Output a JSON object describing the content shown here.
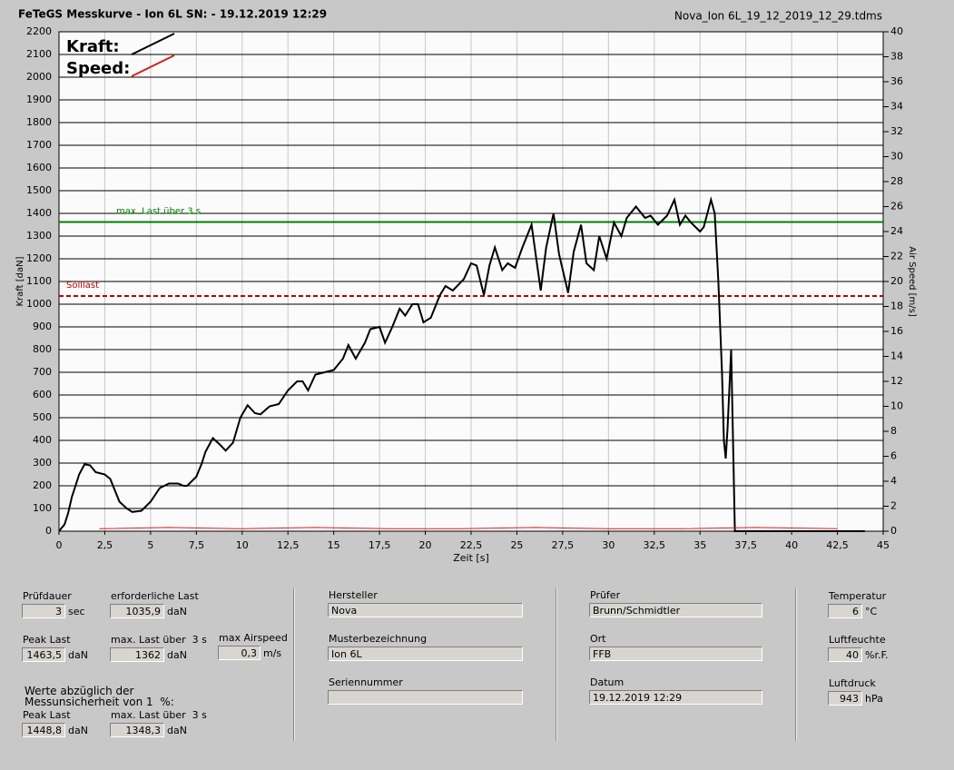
{
  "header": {
    "title": "FeTeGS Messkurve - Ion 6L  SN:  - 19.12.2019 12:29",
    "file": "Nova_Ion 6L_19_12_2019_12_29.tdms"
  },
  "chart_data": {
    "type": "line",
    "x_label": "Zeit [s]",
    "y_label": "Kraft [daN]",
    "y2_label": "Air Speed [m/s]",
    "xlim": [
      0,
      45
    ],
    "xticks": [
      0,
      {
        "value": 2.5,
        "label": "2,5"
      },
      5,
      {
        "value": 7.5,
        "label": "7,5"
      },
      10,
      {
        "value": 12.5,
        "label": "12,5"
      },
      15,
      {
        "value": 17.5,
        "label": "17,5"
      },
      20,
      {
        "value": 22.5,
        "label": "22,5"
      },
      25,
      {
        "value": 27.5,
        "label": "27,5"
      },
      30,
      {
        "value": 32.5,
        "label": "32,5"
      },
      35,
      {
        "value": 37.5,
        "label": "37,5"
      },
      40,
      {
        "value": 42.5,
        "label": "42,5"
      },
      45
    ],
    "ylim": [
      0,
      2200
    ],
    "yticks": [
      0,
      100,
      200,
      300,
      400,
      500,
      600,
      700,
      800,
      900,
      1000,
      1100,
      1200,
      1300,
      1400,
      1500,
      1600,
      1700,
      1800,
      1900,
      2000,
      2100,
      2200
    ],
    "y2lim": [
      0,
      40
    ],
    "y2ticks": [
      0,
      2,
      4,
      6,
      8,
      10,
      12,
      14,
      16,
      18,
      20,
      22,
      24,
      26,
      28,
      30,
      32,
      34,
      36,
      38,
      40
    ],
    "grid": true,
    "series": [
      {
        "name": "Kraft:",
        "color": "#000000",
        "x": [
          0,
          0.3,
          0.5,
          0.7,
          0.9,
          1.1,
          1.4,
          1.7,
          2,
          2.5,
          2.8,
          3,
          3.3,
          3.7,
          4,
          4.5,
          5,
          5.5,
          6,
          6.5,
          6.8,
          7,
          7.5,
          7.8,
          8,
          8.4,
          8.8,
          9.1,
          9.5,
          9.9,
          10.3,
          10.7,
          11,
          11.5,
          12,
          12.5,
          13,
          13.3,
          13.6,
          14,
          14.5,
          15,
          15.5,
          15.8,
          16.2,
          16.7,
          17,
          17.5,
          17.8,
          18.2,
          18.6,
          18.9,
          19.3,
          19.6,
          19.9,
          20.3,
          20.8,
          21.1,
          21.5,
          22.1,
          22.5,
          22.8,
          23.2,
          23.5,
          23.8,
          24.2,
          24.5,
          24.9,
          25.3,
          25.8,
          26.3,
          26.6,
          27,
          27.3,
          27.8,
          28.1,
          28.5,
          28.8,
          29.2,
          29.5,
          29.9,
          30.3,
          30.7,
          31,
          31.5,
          32,
          32.3,
          32.7,
          33.2,
          33.6,
          33.9,
          34.2,
          34.5,
          35,
          35.2,
          35.6,
          35.8,
          36,
          36.2,
          36.3,
          36.4,
          36.5,
          36.7,
          36.9,
          40,
          44
        ],
        "values": [
          0,
          30,
          80,
          150,
          200,
          250,
          295,
          290,
          260,
          250,
          230,
          190,
          130,
          100,
          85,
          90,
          130,
          190,
          210,
          210,
          200,
          200,
          240,
          300,
          350,
          410,
          380,
          355,
          390,
          500,
          555,
          520,
          515,
          550,
          560,
          620,
          660,
          660,
          620,
          690,
          700,
          710,
          760,
          820,
          760,
          830,
          890,
          900,
          830,
          900,
          980,
          950,
          1000,
          1000,
          920,
          940,
          1040,
          1080,
          1060,
          1110,
          1180,
          1170,
          1040,
          1170,
          1250,
          1150,
          1180,
          1160,
          1250,
          1350,
          1060,
          1250,
          1400,
          1220,
          1050,
          1230,
          1350,
          1180,
          1150,
          1300,
          1200,
          1360,
          1300,
          1380,
          1430,
          1380,
          1390,
          1350,
          1390,
          1460,
          1350,
          1390,
          1360,
          1320,
          1340,
          1460,
          1400,
          1100,
          700,
          400,
          320,
          450,
          800,
          0,
          0,
          0
        ]
      },
      {
        "name": "Speed:",
        "color": "#d02020",
        "axis": "y2",
        "x": [
          2.2,
          6,
          10,
          14,
          18,
          22,
          26,
          30,
          34,
          38,
          42.5
        ],
        "values": [
          0.2,
          0.3,
          0.2,
          0.3,
          0.2,
          0.2,
          0.3,
          0.2,
          0.2,
          0.3,
          0.2
        ]
      }
    ],
    "reference_lines": [
      {
        "label": "max. Last über  3 s",
        "value": 1362,
        "color": "#008000",
        "style": "solid"
      },
      {
        "label": "Solllast",
        "value": 1035.9,
        "color": "#c00000",
        "style": "dashed"
      }
    ]
  },
  "form": {
    "pruefdauer": {
      "label": "Prüfdauer",
      "value": "3",
      "unit": "sec"
    },
    "erf_last": {
      "label": "erforderliche Last",
      "value": "1035,9",
      "unit": "daN"
    },
    "peak_last": {
      "label": "Peak Last",
      "value": "1463,5",
      "unit": "daN"
    },
    "max_last": {
      "label": "max. Last über  3 s",
      "value": "1362",
      "unit": "daN"
    },
    "max_airspeed": {
      "label": "max Airspeed",
      "value": "0,3",
      "unit": "m/s"
    },
    "note": [
      "Werte abzüglich der",
      "Messunsicherheit von 1  %:"
    ],
    "peak_last_red": {
      "label": "Peak Last",
      "value": "1448,8",
      "unit": "daN"
    },
    "max_last_red": {
      "label": "max. Last über  3 s",
      "value": "1348,3",
      "unit": "daN"
    },
    "hersteller": {
      "label": "Hersteller",
      "value": "Nova"
    },
    "muster": {
      "label": "Musterbezeichnung",
      "value": "Ion 6L"
    },
    "serie": {
      "label": "Seriennummer"
    },
    "pruefer": {
      "label": "Prüfer",
      "value": "Brunn/Schmidtler"
    },
    "ort": {
      "label": "Ort",
      "value": "FFB"
    },
    "datum": {
      "label": "Datum",
      "value": "19.12.2019 12:29"
    },
    "temperatur": {
      "label": "Temperatur",
      "value": "6",
      "unit": "°C"
    },
    "luftfeuchte": {
      "label": "Luftfeuchte",
      "value": "40",
      "unit": "%r.F."
    },
    "luftdruck": {
      "label": "Luftdruck",
      "value": "943",
      "unit": "hPa"
    }
  }
}
